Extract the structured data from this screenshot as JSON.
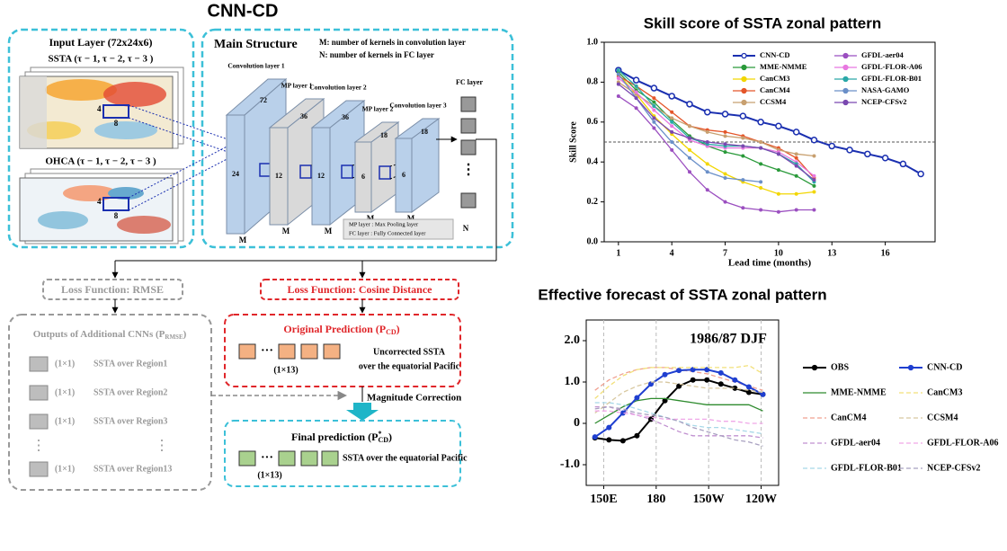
{
  "diagram": {
    "title": "CNN-CD",
    "input_layer": {
      "title": "Input Layer (72x24x6)",
      "ssta": "SSTA (τ − 1, τ − 2,  τ − 3 )",
      "ohca": "OHCA (τ − 1, τ − 2,  τ − 3 )",
      "box_height": "4",
      "box_width": "8"
    },
    "main_structure": {
      "title": "Main Structure",
      "note_m": "M: number of kernels in convolution layer",
      "note_n": "N:  number of kernels in FC layer",
      "layers": [
        {
          "label": "Convolution layer 1",
          "height": "72",
          "width": "24",
          "kernels": "M"
        },
        {
          "label": "MP layer 1",
          "height": "36",
          "width": "12",
          "kernels": "M"
        },
        {
          "label": "Convolution layer 2",
          "height": "36",
          "width": "12",
          "kernels": "M"
        },
        {
          "label": "MP layer 2",
          "height": "18",
          "width": "6",
          "kernels": "M"
        },
        {
          "label": "Convolution layer 3",
          "height": "18",
          "width": "6",
          "kernels": "M"
        }
      ],
      "fc_layer": {
        "label": "FC layer",
        "kernels": "N",
        "more": "⋮"
      },
      "legend": [
        "MP layer : Max Pooling layer",
        "FC layer : Fully Connected layer"
      ]
    },
    "loss_rmse": "Loss Function: RMSE",
    "loss_cosine": "Loss Function: Cosine Distance",
    "additional_outputs": {
      "title": [
        "Outputs of Additional CNNs (P",
        "RMSE",
        ")"
      ],
      "items": [
        {
          "size": "(1×1)",
          "label": "SSTA over Region1"
        },
        {
          "size": "(1×1)",
          "label": "SSTA over Region2"
        },
        {
          "size": "(1×1)",
          "label": "SSTA over Region3"
        },
        {
          "size": "(1×1)",
          "label": "SSTA over Region13"
        }
      ],
      "more": "⋮"
    },
    "original_prediction": {
      "title": [
        "Original Prediction (P",
        "CD",
        ")"
      ],
      "more": "···",
      "size": "(1×13)",
      "desc": [
        "Uncorrected SSTA",
        "over the equatorial Pacific"
      ]
    },
    "magnitude_correction": "Magnitude Correction",
    "final_prediction": {
      "title": [
        "Final prediction (P",
        "*",
        "CD",
        ")"
      ],
      "more": "···",
      "size": "(1×13)",
      "desc": "SSTA over the equatorial Pacific"
    }
  },
  "chart_data": [
    {
      "type": "line",
      "title": "Skill score of SSTA zonal pattern",
      "x_label": "Lead time (months)",
      "y_label": "Skill Score",
      "x": [
        1,
        2,
        3,
        4,
        5,
        6,
        7,
        8,
        9,
        10,
        11,
        12,
        13,
        14,
        15,
        16,
        17,
        18
      ],
      "xlim": [
        0.2,
        18.8
      ],
      "xticks": [
        1,
        4,
        7,
        10,
        13,
        16
      ],
      "ylim": [
        0,
        1
      ],
      "yticks": [
        {
          "value": 0,
          "label": "0.0"
        },
        0.2,
        0.4,
        0.6,
        0.8,
        {
          "value": 1,
          "label": "1.0"
        }
      ],
      "reference_line": 0.5,
      "series": [
        {
          "name": "CNN-CD",
          "color": "#1a2fb0",
          "marker": "open",
          "dashed": false,
          "values": [
            0.86,
            0.81,
            0.77,
            0.73,
            0.69,
            0.65,
            0.64,
            0.63,
            0.6,
            0.58,
            0.55,
            0.51,
            0.48,
            0.46,
            0.44,
            0.42,
            0.39,
            0.34
          ]
        },
        {
          "name": "MME-NMME",
          "color": "#2a9a3a",
          "marker": "dot",
          "dashed": false,
          "values": [
            0.85,
            0.76,
            0.7,
            0.61,
            0.53,
            0.48,
            0.45,
            0.43,
            0.39,
            0.36,
            0.33,
            0.28,
            null,
            null,
            null,
            null,
            null,
            null
          ]
        },
        {
          "name": "CanCM3",
          "color": "#f2d600",
          "marker": "dot",
          "dashed": false,
          "values": [
            0.84,
            0.74,
            0.63,
            0.54,
            0.46,
            0.39,
            0.34,
            0.3,
            0.27,
            0.24,
            0.24,
            0.25,
            null,
            null,
            null,
            null,
            null,
            null
          ]
        },
        {
          "name": "CanCM4",
          "color": "#e4562a",
          "marker": "dot",
          "dashed": false,
          "values": [
            0.83,
            0.78,
            0.72,
            0.65,
            0.58,
            0.56,
            0.55,
            0.53,
            0.5,
            0.47,
            0.42,
            0.32,
            null,
            null,
            null,
            null,
            null,
            null
          ]
        },
        {
          "name": "CCSM4",
          "color": "#c8a070",
          "marker": "dot",
          "dashed": false,
          "values": [
            0.8,
            0.74,
            0.68,
            0.62,
            0.58,
            0.55,
            0.53,
            0.52,
            0.5,
            0.46,
            0.44,
            0.43,
            null,
            null,
            null,
            null,
            null,
            null
          ]
        },
        {
          "name": "GFDL-aer04",
          "color": "#9b4fc0",
          "marker": "dot",
          "dashed": false,
          "values": [
            0.73,
            0.67,
            0.57,
            0.46,
            0.35,
            0.26,
            0.2,
            0.17,
            0.16,
            0.15,
            0.16,
            0.16,
            null,
            null,
            null,
            null,
            null,
            null
          ]
        },
        {
          "name": "GFDL-FLOR-A06",
          "color": "#e878e0",
          "marker": "dot",
          "dashed": false,
          "values": [
            0.82,
            0.75,
            0.66,
            0.58,
            0.51,
            0.48,
            0.47,
            0.47,
            0.47,
            0.45,
            0.4,
            0.33,
            null,
            null,
            null,
            null,
            null,
            null
          ]
        },
        {
          "name": "GFDL-FLOR-B01",
          "color": "#2aa8a8",
          "marker": "dot",
          "dashed": false,
          "values": [
            0.86,
            0.78,
            0.68,
            0.6,
            0.52,
            0.49,
            0.48,
            0.48,
            0.47,
            0.44,
            0.39,
            0.3,
            null,
            null,
            null,
            null,
            null,
            null
          ]
        },
        {
          "name": "NASA-GAMO",
          "color": "#6a8fc8",
          "marker": "dot",
          "dashed": false,
          "values": [
            0.84,
            0.72,
            0.6,
            0.5,
            0.42,
            0.35,
            0.32,
            0.31,
            0.3,
            null,
            null,
            null,
            null,
            null,
            null,
            null,
            null,
            null
          ]
        },
        {
          "name": "NCEP-CFSv2",
          "color": "#7a48b0",
          "marker": "dot",
          "dashed": false,
          "values": [
            0.79,
            0.72,
            0.62,
            0.55,
            0.52,
            0.5,
            0.49,
            0.48,
            0.47,
            0.44,
            0.38,
            0.31,
            null,
            null,
            null,
            null,
            null,
            null
          ]
        }
      ]
    },
    {
      "type": "line",
      "title": "Effective forecast of SSTA zonal pattern",
      "annotation": "1986/87 DJF",
      "x": [
        145,
        153,
        161,
        169,
        177,
        185,
        193,
        201,
        209,
        217,
        225,
        233,
        241
      ],
      "xlim": [
        140,
        250
      ],
      "xticks": [
        {
          "value": 150,
          "label": "150E"
        },
        180,
        {
          "value": 210,
          "label": "150W"
        },
        {
          "value": 240,
          "label": "120W"
        }
      ],
      "ylim": [
        -1.5,
        2.5
      ],
      "yticks": [
        {
          "value": -1,
          "label": "-1.0"
        },
        0,
        {
          "value": 1,
          "label": "1.0"
        },
        {
          "value": 2,
          "label": "2.0"
        }
      ],
      "grid": "x",
      "series": [
        {
          "name": "OBS",
          "color": "#000000",
          "marker": "dot",
          "dashed": false,
          "values": [
            -0.35,
            -0.4,
            -0.42,
            -0.3,
            0.1,
            0.55,
            0.9,
            1.05,
            1.05,
            0.95,
            0.85,
            0.75,
            0.7
          ]
        },
        {
          "name": "MME-NMME",
          "color": "#2e8b2e",
          "marker": null,
          "dashed": false,
          "values": [
            0.0,
            0.2,
            0.4,
            0.55,
            0.6,
            0.6,
            0.55,
            0.5,
            0.45,
            0.45,
            0.45,
            0.45,
            0.3
          ]
        },
        {
          "name": "CanCM4",
          "color": "#f0a090",
          "marker": null,
          "dashed": true,
          "values": [
            0.8,
            1.05,
            1.2,
            1.3,
            1.35,
            1.35,
            1.3,
            1.25,
            1.2,
            1.1,
            1.0,
            0.9,
            0.8
          ]
        },
        {
          "name": "GFDL-aer04",
          "color": "#c090d0",
          "marker": null,
          "dashed": true,
          "values": [
            0.4,
            0.4,
            0.3,
            0.2,
            0.1,
            -0.05,
            -0.2,
            -0.3,
            -0.3,
            -0.3,
            -0.3,
            -0.3,
            -0.35
          ]
        },
        {
          "name": "GFDL-FLOR-B01",
          "color": "#a8d8e8",
          "marker": null,
          "dashed": true,
          "values": [
            0.5,
            0.5,
            0.45,
            0.35,
            0.25,
            0.15,
            0.05,
            -0.05,
            -0.1,
            -0.1,
            -0.15,
            -0.2,
            -0.25
          ]
        },
        {
          "name": "CNN-CD",
          "color": "#1f3fd0",
          "marker": "dot",
          "dashed": false,
          "values": [
            -0.33,
            -0.1,
            0.25,
            0.62,
            0.95,
            1.18,
            1.28,
            1.3,
            1.3,
            1.22,
            1.05,
            0.88,
            0.7
          ]
        },
        {
          "name": "CanCM3",
          "color": "#f2e07a",
          "marker": null,
          "dashed": true,
          "values": [
            0.6,
            0.9,
            1.15,
            1.3,
            1.35,
            1.35,
            1.35,
            1.35,
            1.35,
            1.35,
            1.35,
            1.4,
            1.2
          ]
        },
        {
          "name": "CCSM4",
          "color": "#d8c8a0",
          "marker": null,
          "dashed": true,
          "values": [
            0.25,
            0.5,
            0.75,
            0.9,
            1.0,
            1.0,
            0.95,
            0.9,
            0.85,
            0.85,
            0.85,
            0.8,
            0.75
          ]
        },
        {
          "name": "GFDL-FLOR-A06",
          "color": "#f0a8e8",
          "marker": null,
          "dashed": true,
          "values": [
            0.3,
            0.3,
            0.25,
            0.2,
            0.15,
            0.1,
            0.1,
            0.1,
            0.1,
            0.05,
            0.05,
            0.0,
            0.0
          ]
        },
        {
          "name": "NCEP-CFSv2",
          "color": "#a8a0c0",
          "marker": null,
          "dashed": true,
          "values": [
            0.35,
            0.4,
            0.35,
            0.25,
            0.2,
            0.15,
            0.05,
            -0.1,
            -0.2,
            -0.3,
            -0.4,
            -0.45,
            -0.55
          ]
        }
      ]
    }
  ]
}
